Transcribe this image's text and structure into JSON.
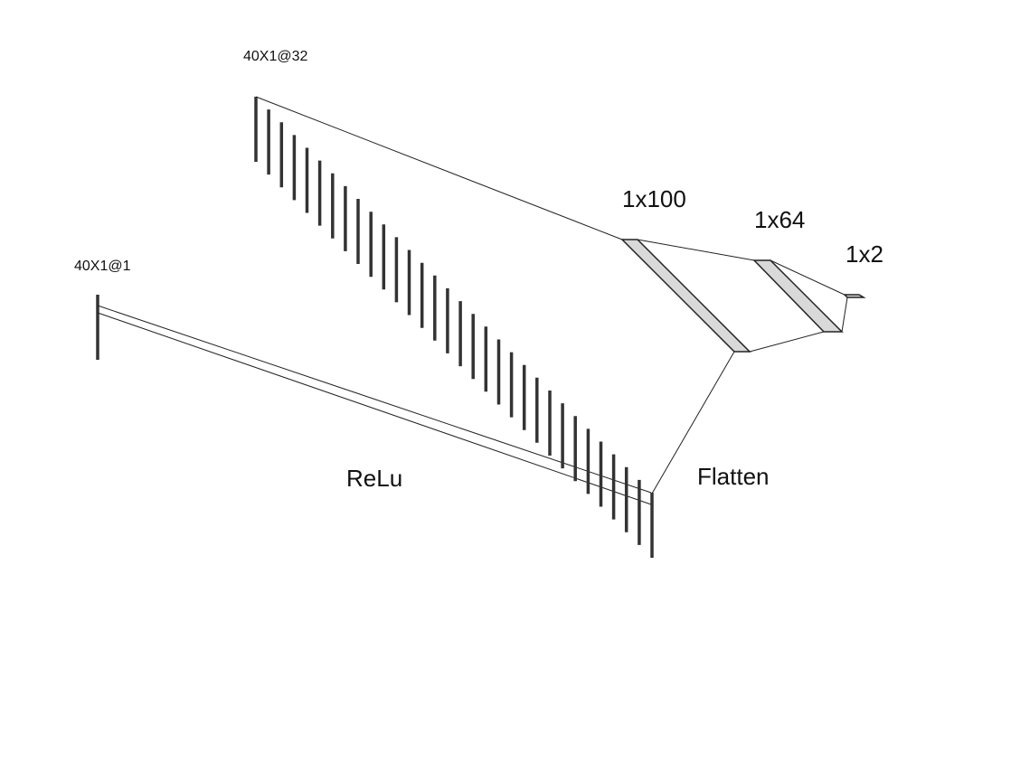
{
  "labels": {
    "input_shape": "40X1@1",
    "conv_shape": "40X1@32",
    "activation": "ReLu",
    "flatten": "Flatten",
    "dense1": "1x100",
    "dense2": "1x64",
    "output": "1x2"
  },
  "layers": {
    "input_maps": 1,
    "conv_maps": 32
  },
  "colors": {
    "bar": "#333333",
    "line": "#222222",
    "dense_fill": "#d9d9d9",
    "text": "#111111"
  }
}
